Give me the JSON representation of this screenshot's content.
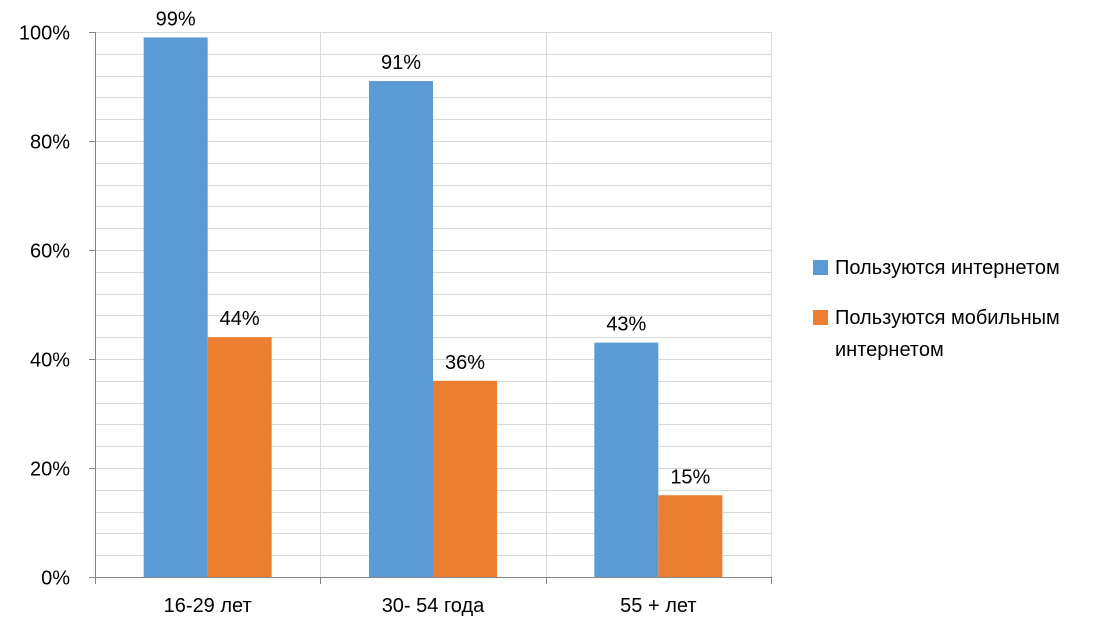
{
  "chart_data": {
    "type": "bar",
    "categories": [
      "16-29 лет",
      "30- 54 года",
      "55 + лет"
    ],
    "series": [
      {
        "name": "Пользуются интернетом",
        "values": [
          99,
          91,
          43
        ],
        "labels": [
          "99%",
          "91%",
          "43%"
        ],
        "color": "#5b9bd5"
      },
      {
        "name": "Пользуются мобильным интернетом",
        "values": [
          44,
          36,
          15
        ],
        "labels": [
          "44%",
          "36%",
          "15%"
        ],
        "color": "#ed7d31"
      }
    ],
    "ylim": [
      0,
      100
    ],
    "y_ticks": [
      0,
      20,
      40,
      60,
      80,
      100
    ],
    "y_tick_labels": [
      "0%",
      "20%",
      "40%",
      "60%",
      "80%",
      "100%"
    ],
    "y_unit": "%",
    "minor_grid_step": 4,
    "grid": true,
    "legend_position": "right",
    "title": "",
    "xlabel": "",
    "ylabel": ""
  },
  "legend": {
    "items": [
      {
        "label": "Пользуются интернетом",
        "color": "#5b9bd5"
      },
      {
        "label": "Пользуются мобильным интернетом",
        "color": "#ed7d31"
      }
    ]
  }
}
